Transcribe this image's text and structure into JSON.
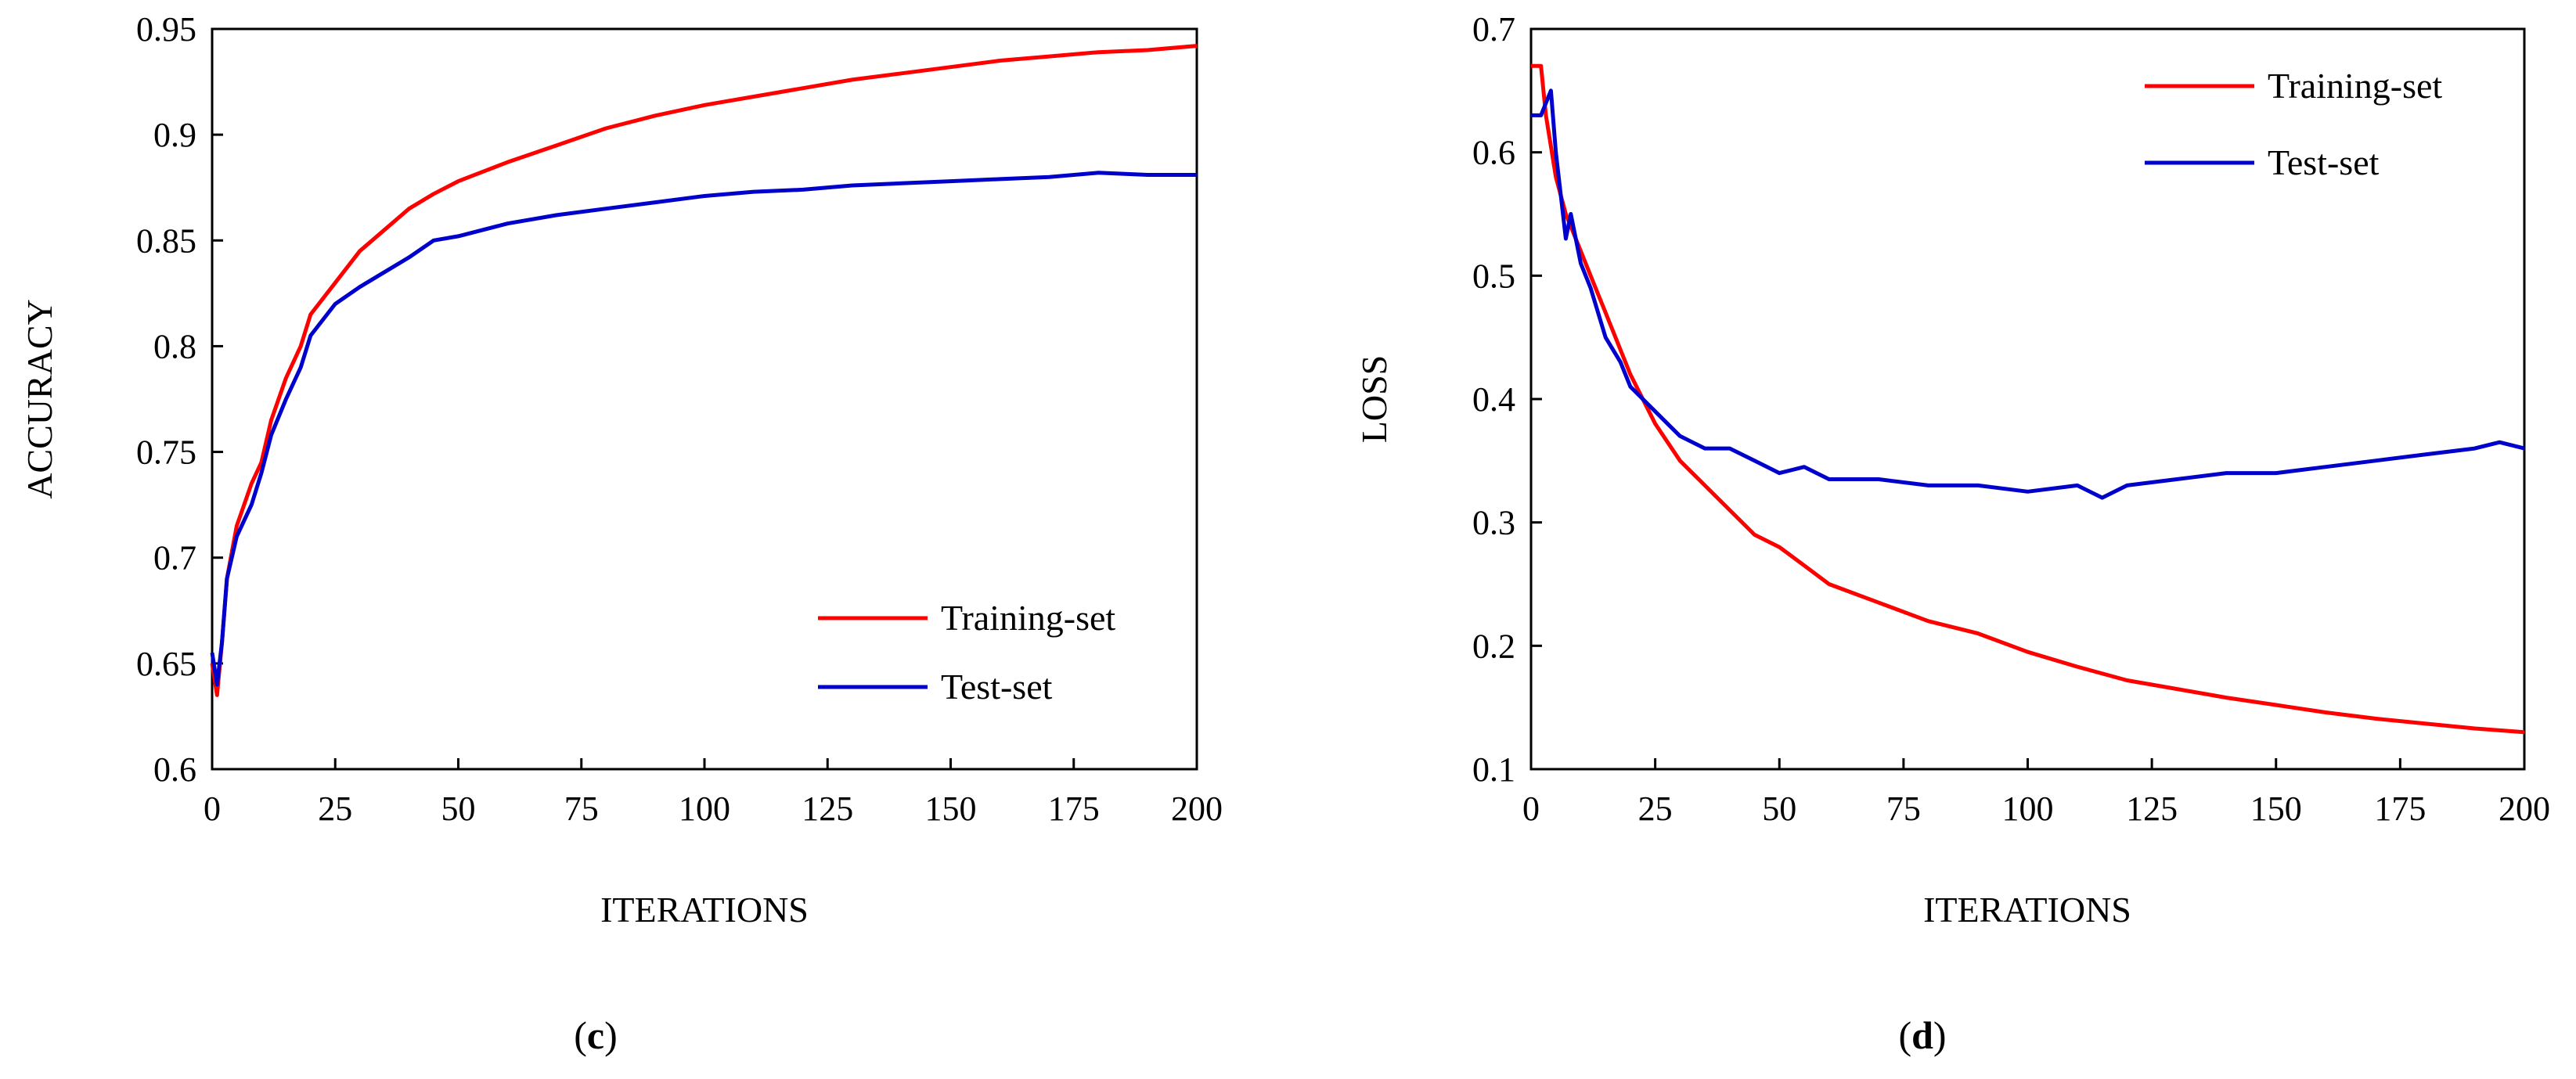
{
  "chart_data": [
    {
      "type": "line",
      "panel_label": {
        "open": "(",
        "letter": "c",
        "close": ")"
      },
      "xlabel": "ITERATIONS",
      "ylabel": "ACCURACY",
      "xlim": [
        0,
        200
      ],
      "ylim": [
        0.6,
        0.95
      ],
      "xticks": [
        0,
        25,
        50,
        75,
        100,
        125,
        150,
        175,
        200
      ],
      "yticks": [
        0.6,
        0.65,
        0.7,
        0.75,
        0.8,
        0.85,
        0.9,
        0.95
      ],
      "ytick_labels": [
        "0.6",
        "0.65",
        "0.7",
        "0.75",
        "0.8",
        "0.85",
        "0.9",
        "0.95"
      ],
      "grid": false,
      "legend_position": "bottom-right",
      "series": [
        {
          "name": "Training-set",
          "color": "#ff0000",
          "x": [
            0,
            1,
            2,
            3,
            5,
            8,
            10,
            12,
            15,
            18,
            20,
            25,
            30,
            35,
            40,
            45,
            50,
            60,
            70,
            80,
            90,
            100,
            110,
            120,
            130,
            140,
            150,
            160,
            170,
            180,
            190,
            200
          ],
          "y": [
            0.65,
            0.635,
            0.66,
            0.69,
            0.715,
            0.735,
            0.745,
            0.765,
            0.785,
            0.8,
            0.815,
            0.83,
            0.845,
            0.855,
            0.865,
            0.872,
            0.878,
            0.887,
            0.895,
            0.903,
            0.909,
            0.914,
            0.918,
            0.922,
            0.926,
            0.929,
            0.932,
            0.935,
            0.937,
            0.939,
            0.94,
            0.942
          ]
        },
        {
          "name": "Test-set",
          "color": "#0000cc",
          "x": [
            0,
            1,
            2,
            3,
            5,
            8,
            10,
            12,
            15,
            18,
            20,
            25,
            30,
            35,
            40,
            45,
            50,
            60,
            70,
            80,
            90,
            100,
            110,
            120,
            130,
            140,
            150,
            160,
            170,
            180,
            190,
            200
          ],
          "y": [
            0.655,
            0.64,
            0.66,
            0.69,
            0.71,
            0.725,
            0.74,
            0.758,
            0.775,
            0.79,
            0.805,
            0.82,
            0.828,
            0.835,
            0.842,
            0.85,
            0.852,
            0.858,
            0.862,
            0.865,
            0.868,
            0.871,
            0.873,
            0.874,
            0.876,
            0.877,
            0.878,
            0.879,
            0.88,
            0.882,
            0.881,
            0.881
          ]
        }
      ]
    },
    {
      "type": "line",
      "panel_label": {
        "open": "(",
        "letter": "d",
        "close": ")"
      },
      "xlabel": "ITERATIONS",
      "ylabel": "LOSS",
      "xlim": [
        0,
        200
      ],
      "ylim": [
        0.1,
        0.7
      ],
      "xticks": [
        0,
        25,
        50,
        75,
        100,
        125,
        150,
        175,
        200
      ],
      "yticks": [
        0.1,
        0.2,
        0.3,
        0.4,
        0.5,
        0.6,
        0.7
      ],
      "ytick_labels": [
        "0.1",
        "0.2",
        "0.3",
        "0.4",
        "0.5",
        "0.6",
        "0.7"
      ],
      "grid": false,
      "legend_position": "top-right",
      "series": [
        {
          "name": "Training-set",
          "color": "#ff0000",
          "x": [
            0,
            2,
            3,
            5,
            7,
            10,
            12,
            15,
            18,
            20,
            25,
            30,
            35,
            40,
            45,
            50,
            55,
            60,
            70,
            80,
            90,
            100,
            110,
            120,
            130,
            140,
            150,
            160,
            170,
            180,
            190,
            200
          ],
          "y": [
            0.67,
            0.67,
            0.63,
            0.58,
            0.55,
            0.52,
            0.5,
            0.47,
            0.44,
            0.42,
            0.38,
            0.35,
            0.33,
            0.31,
            0.29,
            0.28,
            0.265,
            0.25,
            0.235,
            0.22,
            0.21,
            0.195,
            0.183,
            0.172,
            0.165,
            0.158,
            0.152,
            0.146,
            0.141,
            0.137,
            0.133,
            0.13
          ]
        },
        {
          "name": "Test-set",
          "color": "#0000cc",
          "x": [
            0,
            2,
            4,
            5,
            7,
            8,
            10,
            12,
            15,
            18,
            20,
            25,
            30,
            35,
            40,
            45,
            50,
            55,
            60,
            70,
            80,
            90,
            100,
            110,
            115,
            120,
            130,
            140,
            150,
            160,
            170,
            180,
            190,
            195,
            200
          ],
          "y": [
            0.63,
            0.63,
            0.65,
            0.6,
            0.53,
            0.55,
            0.51,
            0.49,
            0.45,
            0.43,
            0.41,
            0.39,
            0.37,
            0.36,
            0.36,
            0.35,
            0.34,
            0.345,
            0.335,
            0.335,
            0.33,
            0.33,
            0.325,
            0.33,
            0.32,
            0.33,
            0.335,
            0.34,
            0.34,
            0.345,
            0.35,
            0.355,
            0.36,
            0.365,
            0.36
          ]
        }
      ]
    }
  ]
}
